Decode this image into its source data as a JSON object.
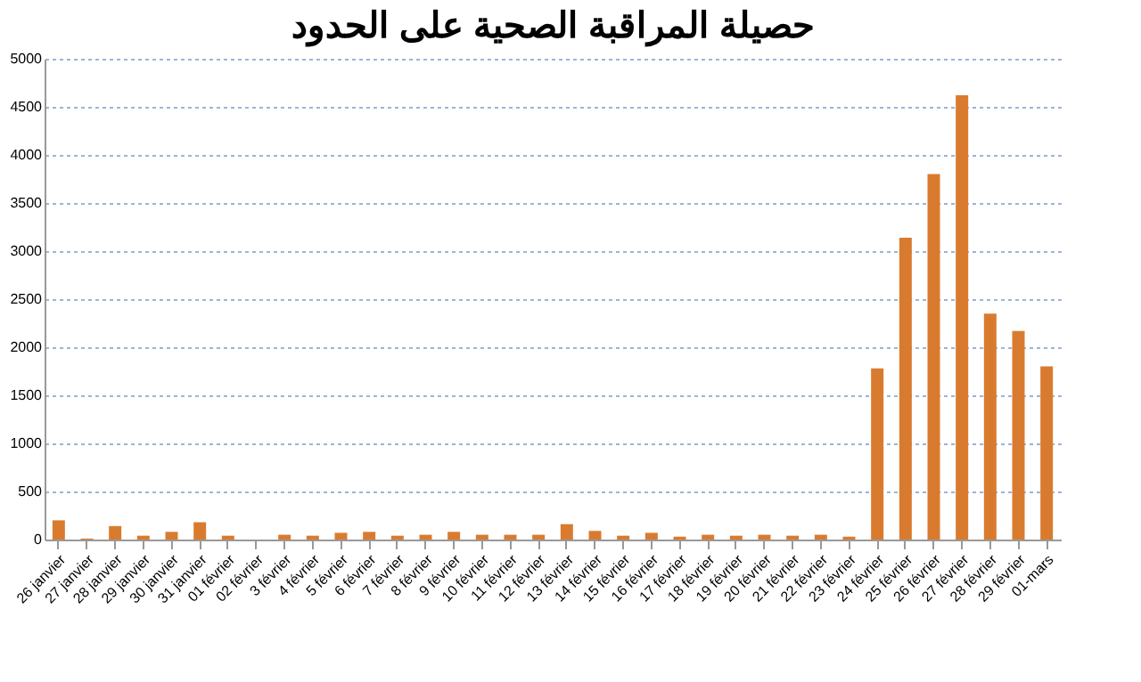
{
  "chart_data": {
    "type": "bar",
    "title": "حصيلة المراقبة الصحية على الحدود",
    "categories": [
      "26 janvier",
      "27 janvier",
      "28 janvier",
      "29 janvier",
      "30 janvier",
      "31 janvier",
      "01 février",
      "02 février",
      "3 février",
      "4 février",
      "5 février",
      "6 février",
      "7 février",
      "8 février",
      "9 février",
      "10 février",
      "11 février",
      "12 février",
      "13 février",
      "14 février",
      "15 février",
      "16 février",
      "17 février",
      "18 février",
      "19 février",
      "20 février",
      "21 février",
      "22 février",
      "23 février",
      "24 février",
      "25 février",
      "26 février",
      "27 février",
      "28 février",
      "29 février",
      "01-mars"
    ],
    "values": [
      200,
      10,
      140,
      40,
      80,
      180,
      40,
      0,
      50,
      40,
      70,
      80,
      40,
      50,
      80,
      50,
      50,
      50,
      160,
      90,
      40,
      70,
      30,
      50,
      40,
      50,
      40,
      50,
      30,
      1780,
      3140,
      3800,
      4620,
      2350,
      2170,
      1800
    ],
    "color": "#d97b2f",
    "ylim": [
      0,
      5000
    ],
    "yticks": [
      0,
      500,
      1000,
      1500,
      2000,
      2500,
      3000,
      3500,
      4000,
      4500,
      5000
    ],
    "grid": "y"
  }
}
